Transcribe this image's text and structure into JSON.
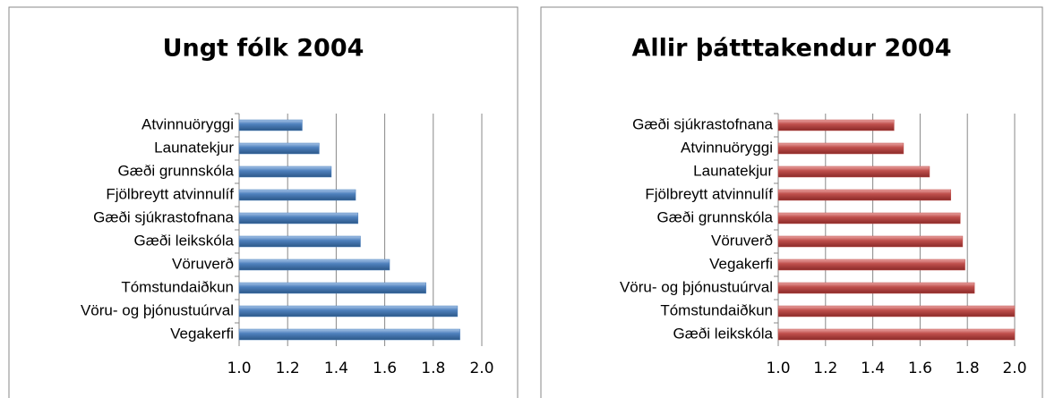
{
  "chart_data": [
    {
      "type": "bar",
      "title": "Ungt fólk 2004",
      "categories": [
        "Atvinnuöryggi",
        "Launatekjur",
        "Gæði grunnskóla",
        "Fjölbreytt  atvinnulíf",
        "Gæði sjúkrastofnana",
        "Gæði leikskóla",
        "Vöruverð",
        "Tómstundaiðkun",
        "Vöru- og þjónustuúrval",
        "Vegakerfi"
      ],
      "values": [
        1.26,
        1.33,
        1.38,
        1.48,
        1.49,
        1.5,
        1.62,
        1.77,
        1.9,
        1.91
      ],
      "color": "#4f81bd",
      "xlim": [
        1,
        2
      ],
      "xticks": [
        {
          "value": 1,
          "label": "1.0"
        },
        1.2,
        1.4,
        1.6,
        1.8,
        {
          "value": 2,
          "label": "2.0"
        }
      ],
      "grid": true
    },
    {
      "type": "bar",
      "title": "Allir þátttakendur 2004",
      "categories": [
        "Gæði sjúkrastofnana",
        "Atvinnuöryggi",
        "Launatekjur",
        "Fjölbreytt  atvinnulíf",
        "Gæði grunnskóla",
        "Vöruverð",
        "Vegakerfi",
        "Vöru- og þjónustuúrval",
        "Tómstundaiðkun",
        "Gæði leikskóla"
      ],
      "values": [
        1.49,
        1.53,
        1.64,
        1.73,
        1.77,
        1.78,
        1.79,
        1.83,
        2,
        2
      ],
      "color": "#c0504d",
      "xlim": [
        1,
        2
      ],
      "xticks": [
        {
          "value": 1,
          "label": "1.0"
        },
        1.2,
        1.4,
        1.6,
        1.8,
        {
          "value": 2,
          "label": "2.0"
        }
      ],
      "grid": true
    }
  ]
}
